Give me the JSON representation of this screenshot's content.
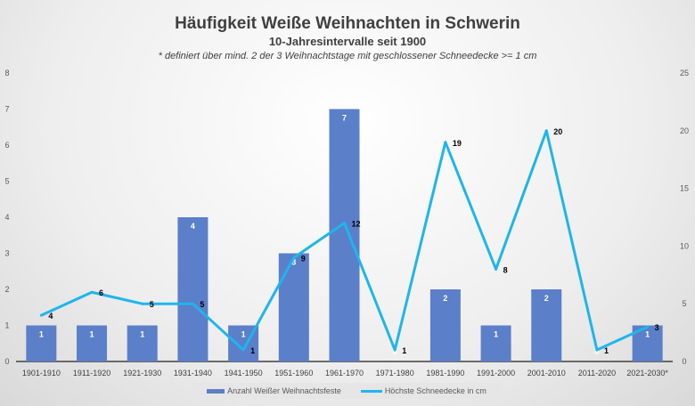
{
  "chart_data": {
    "type": "bar+line",
    "title": "Häufigkeit Weiße Weihnachten in Schwerin",
    "subtitle": "10-Jahresintervalle seit 1900",
    "note": "* definiert über mind. 2 der 3 Weihnachtstage mit geschlossener Schneedecke >= 1 cm",
    "categories": [
      "1901-1910",
      "1911-1920",
      "1921-1930",
      "1931-1940",
      "1941-1950",
      "1951-1960",
      "1961-1970",
      "1971-1980",
      "1981-1990",
      "1991-2000",
      "2001-2010",
      "2011-2020",
      "2021-2030*"
    ],
    "series": [
      {
        "name": "Anzahl Weißer Weihnachtsfeste",
        "type": "bar",
        "axis": "left",
        "color": "#5b7fc9",
        "values": [
          1,
          1,
          1,
          4,
          1,
          3,
          7,
          0,
          2,
          1,
          2,
          0,
          1
        ]
      },
      {
        "name": "Höchste Schneedecke in cm",
        "type": "line",
        "axis": "right",
        "color": "#1fb5ec",
        "values": [
          4,
          6,
          5,
          5,
          1,
          9,
          12,
          1,
          19,
          8,
          20,
          1,
          3
        ]
      }
    ],
    "ylim_left": [
      0,
      8
    ],
    "yticks_left": [
      0,
      1,
      2,
      3,
      4,
      5,
      6,
      7,
      8
    ],
    "ylim_right": [
      0,
      25
    ],
    "yticks_right": [
      0,
      5,
      10,
      15,
      20,
      25
    ],
    "legend": "bottom"
  }
}
